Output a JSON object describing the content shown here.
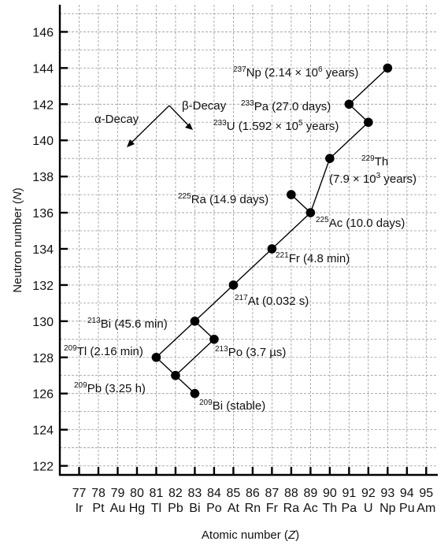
{
  "chart_data": {
    "type": "scatter",
    "xlabel": "Atomic number (Z)",
    "ylabel": "Neutron number (N)",
    "xlim": [
      76,
      95.6
    ],
    "ylim": [
      121.5,
      147.5
    ],
    "grid": true,
    "x_ticks": [
      {
        "z": 77,
        "symbol": "Ir"
      },
      {
        "z": 78,
        "symbol": "Pt"
      },
      {
        "z": 79,
        "symbol": "Au"
      },
      {
        "z": 80,
        "symbol": "Hg"
      },
      {
        "z": 81,
        "symbol": "Tl"
      },
      {
        "z": 82,
        "symbol": "Pb"
      },
      {
        "z": 83,
        "symbol": "Bi"
      },
      {
        "z": 84,
        "symbol": "Po"
      },
      {
        "z": 85,
        "symbol": "At"
      },
      {
        "z": 86,
        "symbol": "Rn"
      },
      {
        "z": 87,
        "symbol": "Fr"
      },
      {
        "z": 88,
        "symbol": "Ra"
      },
      {
        "z": 89,
        "symbol": "Ac"
      },
      {
        "z": 90,
        "symbol": "Th"
      },
      {
        "z": 91,
        "symbol": "Pa"
      },
      {
        "z": 92,
        "symbol": "U"
      },
      {
        "z": 93,
        "symbol": "Np"
      },
      {
        "z": 94,
        "symbol": "Pu"
      },
      {
        "z": 95,
        "symbol": "Am"
      }
    ],
    "y_ticks": [
      122,
      124,
      126,
      128,
      130,
      132,
      134,
      136,
      138,
      140,
      142,
      144,
      146
    ],
    "nuclides": [
      {
        "id": "np237",
        "z": 93,
        "n": 144,
        "mass": "237",
        "symbol": "Np",
        "text": " (2.14 × 10",
        "sup2": "6",
        "text2": " years)"
      },
      {
        "id": "pa233",
        "z": 91,
        "n": 142,
        "mass": "233",
        "symbol": "Pa",
        "text": " (27.0 days)"
      },
      {
        "id": "u233",
        "z": 92,
        "n": 141,
        "mass": "233",
        "symbol": "U",
        "text": " (1.592 × 10",
        "sup2": "5",
        "text2": " years)"
      },
      {
        "id": "th229",
        "z": 90,
        "n": 139,
        "mass": "229",
        "symbol": "Th",
        "text": ""
      },
      {
        "id": "ra225",
        "z": 88,
        "n": 137,
        "mass": "225",
        "symbol": "Ra",
        "text": " (14.9 days)"
      },
      {
        "id": "ac225",
        "z": 89,
        "n": 136,
        "mass": "225",
        "symbol": "Ac",
        "text": " (10.0 days)"
      },
      {
        "id": "fr221",
        "z": 87,
        "n": 134,
        "mass": "221",
        "symbol": "Fr",
        "text": " (4.8 min)"
      },
      {
        "id": "at217",
        "z": 85,
        "n": 132,
        "mass": "217",
        "symbol": "At",
        "text": " (0.032 s)"
      },
      {
        "id": "bi213",
        "z": 83,
        "n": 130,
        "mass": "213",
        "symbol": "Bi",
        "text": " (45.6 min)"
      },
      {
        "id": "po213",
        "z": 84,
        "n": 129,
        "mass": "213",
        "symbol": "Po",
        "text": " (3.7 µs)"
      },
      {
        "id": "tl209",
        "z": 81,
        "n": 128,
        "mass": "209",
        "symbol": "Tl",
        "text": " (2.16 min)"
      },
      {
        "id": "pb209",
        "z": 82,
        "n": 127,
        "mass": "209",
        "symbol": "Pb",
        "text": " (3.25 h)"
      },
      {
        "id": "bi209",
        "z": 83,
        "n": 126,
        "mass": "209",
        "symbol": "Bi",
        "text": " (stable)"
      }
    ],
    "th229_halflife": {
      "text": "(7.9 × 10",
      "sup": "3",
      "text2": " years)"
    },
    "decay_chain": [
      [
        "np237",
        "pa233"
      ],
      [
        "pa233",
        "u233"
      ],
      [
        "u233",
        "th229"
      ],
      [
        "th229",
        "ac225"
      ],
      [
        "ac225",
        "ra225"
      ],
      [
        "ac225",
        "fr221"
      ],
      [
        "fr221",
        "at217"
      ],
      [
        "at217",
        "bi213"
      ],
      [
        "bi213",
        "po213"
      ],
      [
        "bi213",
        "tl209"
      ],
      [
        "po213",
        "pb209"
      ],
      [
        "tl209",
        "pb209"
      ],
      [
        "pb209",
        "bi209"
      ]
    ],
    "legend": {
      "alpha": "α-Decay",
      "beta": "β-Decay"
    }
  }
}
